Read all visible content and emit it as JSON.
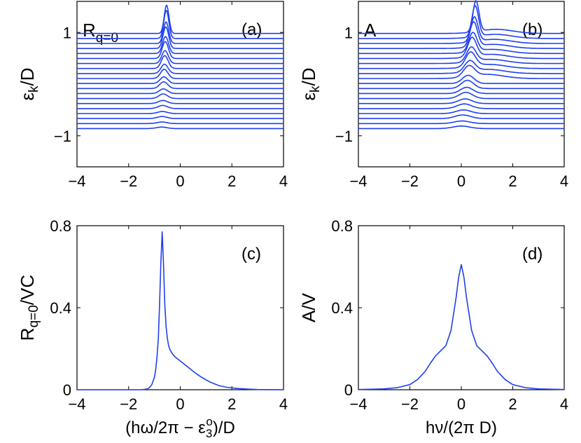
{
  "colors": {
    "line": "#1f3ff0",
    "axis": "#000000",
    "background": "#ffffff"
  },
  "chart_data": [
    {
      "panel": "a",
      "type": "line",
      "annotation": "(a)",
      "legend_label": {
        "main": "R",
        "sub": "q=0"
      },
      "ylabel": {
        "main": "ε",
        "sub": "k",
        "rest": "/D"
      },
      "xlabel": null,
      "xlim": [
        -4,
        4
      ],
      "ylim": [
        -1.6,
        1.6
      ],
      "xticks": [
        -4,
        -2,
        0,
        2,
        4
      ],
      "xtick_labels": [
        "−4",
        "−2",
        "0",
        "2",
        "4"
      ],
      "yticks": [
        -1,
        1
      ],
      "ytick_labels": [
        "−1",
        "1"
      ],
      "waterfall": {
        "count": 20,
        "base_start": -0.86,
        "base_end": 0.98,
        "peak_center": -0.72,
        "peak_heights": [
          0.03,
          0.04,
          0.06,
          0.09,
          0.13,
          0.18,
          0.25,
          0.33,
          0.42,
          0.55
        ]
      }
    },
    {
      "panel": "b",
      "type": "line",
      "annotation": "(b)",
      "legend_label": {
        "main": "A",
        "sub": ""
      },
      "ylabel": {
        "main": "ε",
        "sub": "k",
        "rest": "/D"
      },
      "xlabel": null,
      "xlim": [
        -4,
        4
      ],
      "ylim": [
        -1.6,
        1.6
      ],
      "xticks": [
        -4,
        -2,
        0,
        2,
        4
      ],
      "xtick_labels": [
        "−4",
        "−2",
        "0",
        "2",
        "4"
      ],
      "yticks": [
        -1,
        1
      ],
      "ytick_labels": [
        "−1",
        "1"
      ],
      "waterfall": {
        "count": 20,
        "base_start": -0.86,
        "base_end": 0.98,
        "peak_center": 0.0,
        "peak_heights": [
          0.05,
          0.07,
          0.09,
          0.12,
          0.16,
          0.21,
          0.28,
          0.37,
          0.48,
          0.6
        ]
      }
    },
    {
      "panel": "c",
      "type": "line",
      "annotation": "(c)",
      "ylabel": {
        "main": "R",
        "sub": "q=0",
        "rest": "/VC"
      },
      "xlabel": {
        "pre": "(hω/2π − ε",
        "sub": "3",
        "sup": "o",
        "post": ")/D"
      },
      "xlim": [
        -4,
        4
      ],
      "ylim": [
        0,
        0.8
      ],
      "xticks": [
        -4,
        -2,
        0,
        2,
        4
      ],
      "xtick_labels": [
        "−4",
        "−2",
        "0",
        "2",
        "4"
      ],
      "yticks": [
        0,
        0.4,
        0.8
      ],
      "ytick_labels": [
        "0",
        "0.4",
        "0.8"
      ],
      "series": [
        {
          "name": "R_q=0",
          "x": [
            -4,
            -2,
            -1.5,
            -1.3,
            -1.2,
            -1.1,
            -1.0,
            -0.95,
            -0.9,
            -0.85,
            -0.8,
            -0.75,
            -0.7,
            -0.65,
            -0.6,
            -0.55,
            -0.5,
            -0.45,
            -0.4,
            -0.3,
            -0.2,
            -0.1,
            0,
            0.2,
            0.4,
            0.6,
            0.8,
            1.0,
            1.2,
            1.5,
            1.8,
            2.2,
            2.6,
            3.0,
            4.0
          ],
          "y": [
            0,
            0,
            0,
            0.003,
            0.01,
            0.025,
            0.06,
            0.1,
            0.16,
            0.25,
            0.42,
            0.62,
            0.77,
            0.62,
            0.42,
            0.31,
            0.25,
            0.215,
            0.195,
            0.175,
            0.16,
            0.15,
            0.14,
            0.12,
            0.1,
            0.08,
            0.063,
            0.048,
            0.035,
            0.02,
            0.012,
            0.006,
            0.003,
            0.001,
            0
          ]
        }
      ]
    },
    {
      "panel": "d",
      "type": "line",
      "annotation": "(d)",
      "ylabel": {
        "main": "A/V",
        "sub": "",
        "rest": ""
      },
      "xlabel": {
        "pre": "hν/(2π D)",
        "sub": "",
        "sup": "",
        "post": ""
      },
      "xlim": [
        -4,
        4
      ],
      "ylim": [
        0,
        0.8
      ],
      "xticks": [
        -4,
        -2,
        0,
        2,
        4
      ],
      "xtick_labels": [
        "−4",
        "−2",
        "0",
        "2",
        "4"
      ],
      "yticks": [
        0,
        0.4,
        0.8
      ],
      "ytick_labels": [
        "0",
        "0.4",
        "0.8"
      ],
      "series": [
        {
          "name": "A",
          "x": [
            -4,
            -3,
            -2.5,
            -2,
            -1.7,
            -1.4,
            -1.2,
            -1.0,
            -0.8,
            -0.6,
            -0.4,
            -0.2,
            -0.1,
            0,
            0.1,
            0.2,
            0.4,
            0.6,
            0.8,
            1.0,
            1.2,
            1.4,
            1.7,
            2,
            2.5,
            3,
            4
          ],
          "y": [
            0.001,
            0.004,
            0.01,
            0.025,
            0.05,
            0.09,
            0.13,
            0.165,
            0.19,
            0.215,
            0.29,
            0.45,
            0.55,
            0.61,
            0.55,
            0.45,
            0.29,
            0.215,
            0.19,
            0.165,
            0.13,
            0.09,
            0.05,
            0.025,
            0.01,
            0.004,
            0.001
          ]
        }
      ]
    }
  ]
}
